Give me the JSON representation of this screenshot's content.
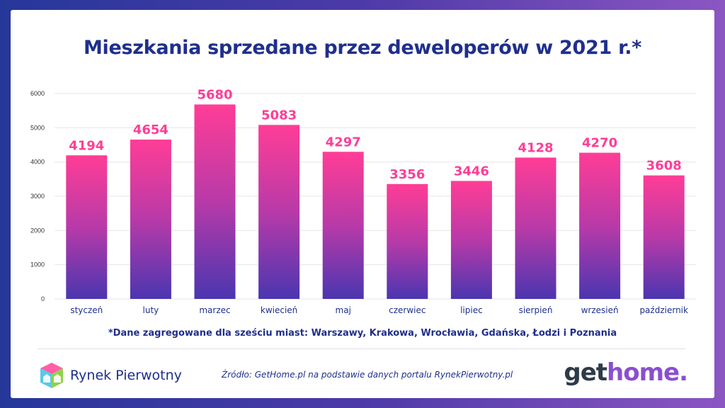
{
  "title": "Mieszkania sprzedane przez deweloperów w 2021 r.*",
  "note": "*Dane zagregowane dla sześciu miast: Warszawy, Krakowa, Wrocławia, Gdańska, Łodzi i Poznania",
  "source": "Źródło: GetHome.pl na podstawie danych portalu RynekPierwotny.pl",
  "logos": {
    "left": "Rynek Pierwotny",
    "right_part1": "get",
    "right_part2": "home."
  },
  "chart_data": {
    "type": "bar",
    "title": "Mieszkania sprzedane przez deweloperów w 2021 r.*",
    "categories": [
      "styczeń",
      "luty",
      "marzec",
      "kwiecień",
      "maj",
      "czerwiec",
      "lipiec",
      "sierpień",
      "wrzesień",
      "październik"
    ],
    "values": [
      4194,
      4654,
      5680,
      5083,
      4297,
      3356,
      3446,
      4128,
      4270,
      3608
    ],
    "y_ticks": [
      0,
      1000,
      2000,
      3000,
      4000,
      5000,
      6000
    ],
    "ylim": [
      0,
      6000
    ],
    "grid": true,
    "xlabel": "",
    "ylabel": "",
    "colors": {
      "bar_top": "#ff3d96",
      "bar_mid": "#b83aa8",
      "bar_bottom": "#4a36b0",
      "label": "#ff3d96"
    }
  }
}
